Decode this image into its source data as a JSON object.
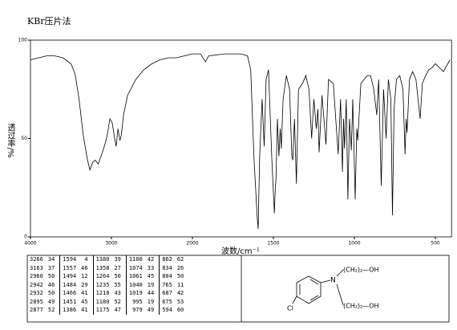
{
  "chart_data": {
    "type": "line",
    "title": "KBr压片法",
    "x_label": "波数/cm⁻¹",
    "y_label": "透过率/%",
    "color": "#000000",
    "x": [
      4000,
      3900,
      3800,
      3700,
      3600,
      3500,
      3450,
      3400,
      3350,
      3300,
      3266,
      3230,
      3200,
      3163,
      3120,
      3080,
      3050,
      3020,
      2990,
      2960,
      2942,
      2932,
      2920,
      2895,
      2877,
      2850,
      2800,
      2700,
      2600,
      2500,
      2400,
      2300,
      2200,
      2100,
      2000,
      1950,
      1920,
      1900,
      1800,
      1700,
      1660,
      1640,
      1620,
      1600,
      1594,
      1585,
      1570,
      1557,
      1545,
      1530,
      1510,
      1494,
      1488,
      1484,
      1475,
      1466,
      1458,
      1451,
      1440,
      1420,
      1400,
      1386,
      1380,
      1370,
      1358,
      1345,
      1320,
      1300,
      1280,
      1264,
      1250,
      1235,
      1225,
      1218,
      1200,
      1180,
      1175,
      1160,
      1130,
      1100,
      1085,
      1074,
      1067,
      1061,
      1050,
      1040,
      1030,
      1019,
      1010,
      995,
      985,
      979,
      960,
      920,
      900,
      880,
      862,
      850,
      834,
      820,
      804,
      790,
      775,
      765,
      755,
      740,
      720,
      700,
      687,
      680,
      675,
      660,
      640,
      620,
      594,
      580,
      560,
      540,
      520,
      500,
      450,
      410
    ],
    "values": [
      90,
      91,
      92,
      92,
      91,
      88,
      83,
      70,
      52,
      40,
      34,
      38,
      39,
      37,
      42,
      47,
      52,
      60,
      58,
      50,
      46,
      50,
      55,
      49,
      52,
      62,
      72,
      80,
      85,
      88,
      90,
      91,
      91,
      92,
      93,
      93,
      89,
      92,
      93,
      93,
      92,
      85,
      40,
      10,
      4,
      40,
      70,
      46,
      80,
      85,
      40,
      12,
      25,
      29,
      60,
      41,
      55,
      45,
      70,
      82,
      75,
      41,
      39,
      60,
      27,
      75,
      78,
      82,
      75,
      50,
      70,
      55,
      65,
      43,
      72,
      52,
      47,
      80,
      78,
      42,
      70,
      33,
      60,
      45,
      70,
      19,
      60,
      44,
      70,
      19,
      55,
      49,
      78,
      82,
      82,
      75,
      62,
      80,
      26,
      75,
      50,
      80,
      70,
      11,
      65,
      80,
      82,
      75,
      42,
      60,
      53,
      80,
      84,
      80,
      60,
      78,
      82,
      85,
      86,
      88,
      84,
      90
    ],
    "xlim": [
      4000,
      400
    ],
    "xticks": [
      4000,
      3000,
      2000,
      1500,
      1000,
      500
    ],
    "ylim": [
      0,
      100
    ],
    "yticks": [
      0,
      50,
      100
    ]
  },
  "peak_table": {
    "rows": [
      [
        3266,
        34,
        1594,
        4,
        1380,
        39,
        1100,
        42,
        862,
        62
      ],
      [
        3163,
        37,
        1557,
        46,
        1358,
        27,
        1074,
        33,
        834,
        26
      ],
      [
        2960,
        50,
        1494,
        12,
        1264,
        50,
        1061,
        45,
        804,
        50
      ],
      [
        2942,
        46,
        1484,
        29,
        1235,
        55,
        1040,
        19,
        765,
        11
      ],
      [
        2932,
        50,
        1466,
        41,
        1218,
        43,
        1019,
        44,
        687,
        42
      ],
      [
        2895,
        49,
        1451,
        45,
        1180,
        52,
        995,
        19,
        675,
        53
      ],
      [
        2877,
        52,
        1386,
        41,
        1175,
        47,
        979,
        49,
        594,
        60
      ]
    ]
  },
  "structure": {
    "atom": "N",
    "substituent_top": "(CH₂)₂—OH",
    "substituent_bottom": "(CH₂)₂—OH",
    "halogen": "Cl"
  }
}
